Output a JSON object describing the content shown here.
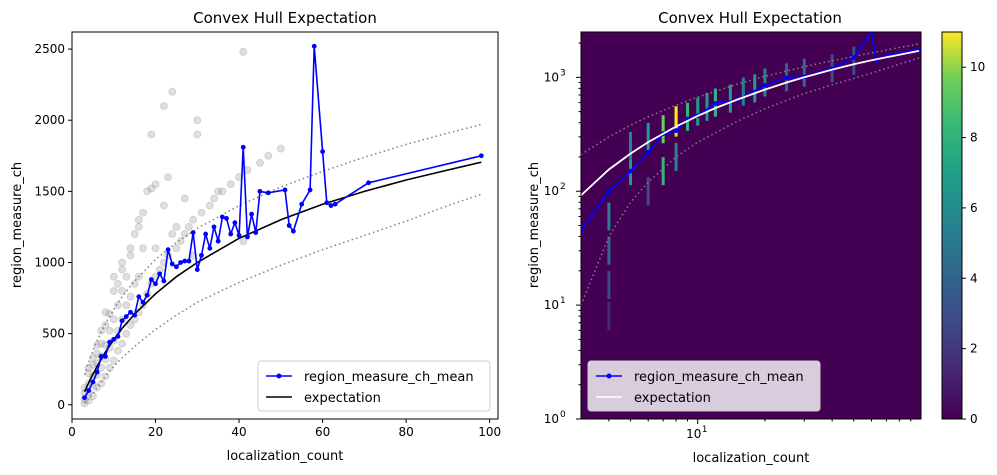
{
  "figure": {
    "left_title": "Convex Hull Expectation",
    "right_title": "Convex Hull Expectation"
  },
  "chart_data": [
    {
      "type": "scatter",
      "title": "Convex Hull Expectation",
      "xlabel": "localization_count",
      "ylabel": "region_measure_ch",
      "xlim": [
        0,
        102
      ],
      "ylim": [
        -100,
        2620
      ],
      "xticks": [
        0,
        20,
        40,
        60,
        80,
        100
      ],
      "yticks": [
        0,
        500,
        1000,
        1500,
        2000,
        2500
      ],
      "legend_position": "lower-right",
      "legend": [
        "region_measure_ch_mean",
        "expectation"
      ],
      "colors": {
        "mean": "#0000ff",
        "expectation": "#000000",
        "bounds": "#808080",
        "scatter": "#b0b0b0"
      },
      "scatter": {
        "x": [
          3,
          3,
          3,
          3,
          4,
          4,
          4,
          4,
          4,
          5,
          5,
          5,
          5,
          5,
          6,
          6,
          6,
          6,
          6,
          7,
          7,
          7,
          7,
          7,
          8,
          8,
          8,
          8,
          8,
          9,
          9,
          9,
          9,
          10,
          10,
          10,
          10,
          11,
          11,
          11,
          11,
          12,
          12,
          12,
          12,
          13,
          13,
          13,
          14,
          14,
          14,
          15,
          15,
          15,
          16,
          16,
          16,
          17,
          17,
          18,
          18,
          19,
          19,
          20,
          20,
          21,
          22,
          22,
          23,
          24,
          25,
          26,
          27,
          28,
          29,
          30,
          31,
          33,
          34,
          35,
          36,
          38,
          40,
          41,
          42,
          45,
          47,
          50,
          19,
          22,
          24,
          30,
          41,
          17,
          20,
          23,
          25,
          27,
          29,
          10,
          12,
          14,
          16
        ],
        "y": [
          10,
          40,
          80,
          120,
          30,
          90,
          150,
          220,
          260,
          60,
          140,
          200,
          280,
          330,
          120,
          210,
          290,
          360,
          420,
          150,
          260,
          340,
          430,
          520,
          200,
          320,
          420,
          560,
          650,
          260,
          400,
          520,
          640,
          310,
          450,
          600,
          800,
          380,
          520,
          700,
          850,
          430,
          600,
          800,
          950,
          500,
          700,
          900,
          560,
          760,
          1050,
          600,
          850,
          1200,
          650,
          900,
          1300,
          700,
          1100,
          780,
          1500,
          850,
          1900,
          900,
          1550,
          950,
          1000,
          2100,
          1050,
          2200,
          1100,
          1150,
          1200,
          1250,
          1300,
          2000,
          1350,
          1400,
          1450,
          1500,
          1500,
          1550,
          1600,
          2480,
          1650,
          1700,
          1750,
          1800,
          1520,
          1400,
          1200,
          1900,
          1150,
          1350,
          1100,
          1600,
          1250,
          1450,
          1050,
          900,
          1000,
          1100,
          1250
        ]
      },
      "series": [
        {
          "name": "region_measure_ch_mean",
          "x": [
            3,
            4,
            5,
            6,
            7,
            8,
            9,
            10,
            11,
            12,
            13,
            14,
            15,
            16,
            17,
            18,
            19,
            20,
            21,
            22,
            23,
            24,
            25,
            26,
            27,
            28,
            29,
            30,
            31,
            32,
            33,
            34,
            35,
            36,
            37,
            38,
            39,
            40,
            41,
            42,
            43,
            44,
            45,
            47,
            51,
            52,
            53,
            55,
            57,
            58,
            60,
            61,
            62,
            63,
            71,
            98
          ],
          "y": [
            50,
            100,
            160,
            230,
            340,
            340,
            440,
            460,
            480,
            590,
            620,
            650,
            630,
            760,
            720,
            770,
            880,
            850,
            920,
            870,
            1090,
            990,
            970,
            1000,
            1010,
            1010,
            1210,
            950,
            1050,
            1200,
            1100,
            1250,
            1150,
            1320,
            1310,
            1200,
            1280,
            1190,
            1810,
            1180,
            1340,
            1210,
            1500,
            1490,
            1510,
            1260,
            1220,
            1410,
            1510,
            2520,
            1780,
            1420,
            1400,
            1410,
            1560,
            1750
          ]
        },
        {
          "name": "expectation",
          "x": [
            3,
            4,
            5,
            6,
            8,
            10,
            12,
            15,
            20,
            25,
            30,
            40,
            50,
            60,
            70,
            80,
            90,
            98
          ],
          "y": [
            92,
            155,
            214,
            270,
            370,
            458,
            537,
            638,
            780,
            900,
            1000,
            1170,
            1300,
            1410,
            1500,
            1580,
            1650,
            1705
          ]
        }
      ],
      "bounds": {
        "upper": {
          "x": [
            3,
            4,
            5,
            6,
            8,
            10,
            12,
            15,
            20,
            25,
            30,
            40,
            50,
            60,
            70,
            80,
            90,
            98
          ],
          "y": [
            210,
            300,
            380,
            450,
            570,
            670,
            760,
            870,
            1020,
            1140,
            1240,
            1400,
            1530,
            1640,
            1740,
            1830,
            1910,
            1970
          ]
        },
        "lower": {
          "x": [
            3,
            4,
            5,
            6,
            8,
            10,
            12,
            15,
            20,
            25,
            30,
            40,
            50,
            60,
            70,
            80,
            90,
            98
          ],
          "y": [
            10,
            40,
            80,
            120,
            200,
            270,
            330,
            410,
            530,
            630,
            720,
            860,
            980,
            1090,
            1190,
            1290,
            1400,
            1480
          ]
        }
      }
    },
    {
      "type": "heatmap",
      "title": "Convex Hull Expectation",
      "xlabel": "localization_count",
      "ylabel": "region_measure_ch",
      "xscale": "log",
      "yscale": "log",
      "xlim": [
        3,
        100
      ],
      "ylim": [
        1,
        2500
      ],
      "xticks_labels": [
        "10^1"
      ],
      "yticks_labels": [
        "10^0",
        "10^1",
        "10^2",
        "10^3"
      ],
      "colorbar": {
        "min": 0,
        "max": 11,
        "ticks": [
          "0",
          "2",
          "4",
          "6",
          "8",
          "10"
        ],
        "cmap": "viridis"
      },
      "legend_position": "lower-left",
      "legend": [
        "region_measure_ch_mean",
        "expectation"
      ],
      "colors": {
        "mean": "#0000ff",
        "expectation": "#ffffff",
        "bounds": "#808080",
        "background": "#440154"
      },
      "heatmap_cells": [
        {
          "x": 4,
          "y": 8,
          "c": 1
        },
        {
          "x": 4,
          "y": 15,
          "c": 2
        },
        {
          "x": 4,
          "y": 30,
          "c": 3
        },
        {
          "x": 4,
          "y": 60,
          "c": 4
        },
        {
          "x": 5,
          "y": 150,
          "c": 5
        },
        {
          "x": 5,
          "y": 250,
          "c": 4
        },
        {
          "x": 6,
          "y": 100,
          "c": 2
        },
        {
          "x": 6,
          "y": 300,
          "c": 5
        },
        {
          "x": 7,
          "y": 150,
          "c": 6
        },
        {
          "x": 7,
          "y": 350,
          "c": 7
        },
        {
          "x": 8,
          "y": 400,
          "c": 9
        },
        {
          "x": 8,
          "y": 200,
          "c": 4
        },
        {
          "x": 9,
          "y": 450,
          "c": 6
        },
        {
          "x": 10,
          "y": 500,
          "c": 5
        },
        {
          "x": 11,
          "y": 550,
          "c": 5
        },
        {
          "x": 12,
          "y": 600,
          "c": 6
        },
        {
          "x": 14,
          "y": 650,
          "c": 5
        },
        {
          "x": 16,
          "y": 750,
          "c": 4
        },
        {
          "x": 18,
          "y": 800,
          "c": 5
        },
        {
          "x": 20,
          "y": 900,
          "c": 4
        },
        {
          "x": 25,
          "y": 1000,
          "c": 3
        },
        {
          "x": 30,
          "y": 1100,
          "c": 3
        },
        {
          "x": 40,
          "y": 1200,
          "c": 2
        },
        {
          "x": 50,
          "y": 1400,
          "c": 2
        },
        {
          "x": 8,
          "y": 420,
          "c": 11
        }
      ],
      "series": [
        {
          "name": "region_measure_ch_mean",
          "x": [
            3,
            4,
            5,
            6,
            7,
            8,
            9,
            10,
            12,
            15,
            20,
            25,
            30,
            40,
            50,
            60,
            63,
            71,
            98
          ],
          "y": [
            45,
            100,
            150,
            220,
            320,
            340,
            430,
            460,
            590,
            630,
            850,
            990,
            1010,
            1190,
            1490,
            2520,
            1410,
            1560,
            1750
          ]
        },
        {
          "name": "expectation",
          "x": [
            3,
            4,
            5,
            6,
            8,
            10,
            12,
            15,
            20,
            25,
            30,
            40,
            50,
            60,
            70,
            80,
            98
          ],
          "y": [
            92,
            155,
            214,
            270,
            370,
            458,
            537,
            638,
            780,
            900,
            1000,
            1170,
            1300,
            1410,
            1500,
            1580,
            1705
          ]
        }
      ],
      "bounds": {
        "upper": {
          "x": [
            3,
            4,
            5,
            6,
            8,
            10,
            15,
            20,
            30,
            40,
            60,
            98
          ],
          "y": [
            210,
            300,
            380,
            450,
            570,
            670,
            870,
            1020,
            1240,
            1400,
            1640,
            1970
          ]
        },
        "lower": {
          "x": [
            3,
            4,
            5,
            6,
            8,
            10,
            15,
            20,
            30,
            40,
            60,
            98
          ],
          "y": [
            10,
            40,
            80,
            120,
            200,
            270,
            410,
            530,
            720,
            860,
            1090,
            1480
          ]
        }
      }
    }
  ]
}
